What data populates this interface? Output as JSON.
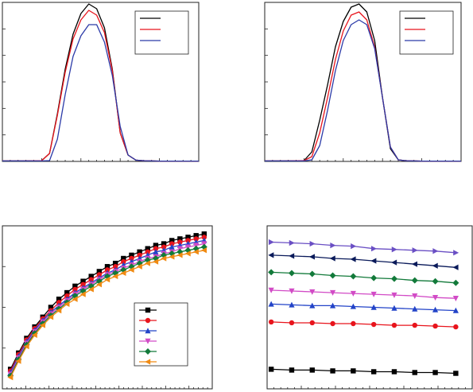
{
  "colors": {
    "black": "#000000",
    "red": "#e8141c",
    "blue": "#2b3aa8",
    "purple": "#6a4fc4",
    "navy": "#0a1a5a",
    "green": "#127a3a",
    "magenta": "#d24bc6",
    "blue2": "#2243c8",
    "orange": "#f08a12"
  },
  "chart_data": [
    {
      "id": "a",
      "type": "line",
      "title": "",
      "xlabel": "",
      "ylabel": "",
      "xlim": [
        0,
        100
      ],
      "ylim": [
        0,
        100
      ],
      "grid": false,
      "legend": {
        "placement": "top-right",
        "entries": [
          "",
          "",
          ""
        ]
      },
      "x": [
        0,
        10,
        20,
        24,
        28,
        32,
        36,
        40,
        44,
        48,
        52,
        56,
        60,
        64,
        68,
        72,
        76,
        80,
        90,
        100
      ],
      "series": [
        {
          "color_key": "black",
          "values": [
            0.3,
            0.3,
            0.5,
            5,
            30,
            58,
            80,
            93,
            99,
            96,
            84,
            58,
            18,
            4,
            0.8,
            0.4,
            0.3,
            0.2,
            0.2,
            0.2
          ]
        },
        {
          "color_key": "red",
          "values": [
            0.3,
            0.3,
            0.5,
            5,
            29,
            56,
            77,
            89,
            95,
            92,
            81,
            57,
            18,
            4,
            0.8,
            0.4,
            0.3,
            0.2,
            0.2,
            0.2
          ]
        },
        {
          "color_key": "blue",
          "values": [
            0.3,
            0.3,
            0.3,
            0.5,
            14,
            42,
            66,
            79,
            86,
            86,
            75,
            54,
            22,
            4,
            0.8,
            0.4,
            0.3,
            0.2,
            0.2,
            0.2
          ]
        }
      ]
    },
    {
      "id": "b",
      "type": "line",
      "title": "",
      "xlabel": "",
      "ylabel": "",
      "xlim": [
        0,
        100
      ],
      "ylim": [
        0,
        100
      ],
      "grid": false,
      "legend": {
        "placement": "top-right",
        "entries": [
          "",
          "",
          ""
        ]
      },
      "x": [
        0,
        10,
        20,
        24,
        28,
        32,
        36,
        40,
        44,
        48,
        52,
        56,
        60,
        64,
        68,
        72,
        76,
        80,
        90,
        100
      ],
      "series": [
        {
          "color_key": "black",
          "values": [
            0.3,
            0.3,
            0.5,
            6,
            26,
            48,
            72,
            88,
            97,
            99,
            94,
            76,
            40,
            8,
            1,
            0.4,
            0.3,
            0.2,
            0.2,
            0.2
          ]
        },
        {
          "color_key": "red",
          "values": [
            0.3,
            0.3,
            0.5,
            3,
            18,
            40,
            64,
            82,
            92,
            94,
            89,
            72,
            40,
            9,
            1,
            0.4,
            0.3,
            0.2,
            0.2,
            0.2
          ]
        },
        {
          "color_key": "blue",
          "values": [
            0.3,
            0.3,
            0.3,
            1,
            10,
            32,
            57,
            76,
            86,
            89,
            86,
            71,
            40,
            9,
            1,
            0.4,
            0.3,
            0.2,
            0.2,
            0.2
          ]
        }
      ]
    },
    {
      "id": "c",
      "type": "line",
      "title": "",
      "xlabel": "",
      "ylabel": "",
      "xlim": [
        0,
        26
      ],
      "ylim": [
        0,
        100
      ],
      "grid": false,
      "legend": {
        "placement": "bottom-right",
        "entries": [
          "",
          "",
          "",
          "",
          "",
          ""
        ]
      },
      "x": [
        1,
        2,
        3,
        4,
        5,
        6,
        7,
        8,
        9,
        10,
        11,
        12,
        13,
        14,
        15,
        16,
        17,
        18,
        19,
        20,
        21,
        22,
        23,
        24,
        25
      ],
      "series": [
        {
          "color_key": "black",
          "marker": "square",
          "values": [
            12,
            22,
            31,
            38,
            44,
            50,
            55,
            59,
            63,
            66,
            69,
            72,
            75,
            77,
            80,
            82,
            84,
            86,
            88,
            89,
            91,
            92,
            93,
            94,
            95
          ]
        },
        {
          "color_key": "red",
          "marker": "circle",
          "values": [
            11,
            21,
            30,
            37,
            43,
            48,
            53,
            57,
            61,
            64,
            67,
            70,
            73,
            75,
            78,
            80,
            82,
            84,
            86,
            87,
            89,
            90,
            91,
            92,
            93
          ]
        },
        {
          "color_key": "blue2",
          "marker": "triangle-up",
          "values": [
            10,
            20,
            29,
            36,
            42,
            47,
            51,
            55,
            59,
            62,
            65,
            68,
            71,
            73,
            76,
            78,
            80,
            82,
            84,
            85,
            87,
            88,
            89,
            90,
            91
          ]
        },
        {
          "color_key": "magenta",
          "marker": "triangle-down",
          "values": [
            9,
            19,
            28,
            35,
            41,
            46,
            50,
            54,
            58,
            61,
            64,
            67,
            70,
            72,
            74,
            76,
            78,
            80,
            81,
            83,
            84,
            86,
            87,
            88,
            89
          ]
        },
        {
          "color_key": "green",
          "marker": "diamond",
          "values": [
            8,
            18,
            27,
            34,
            40,
            45,
            49,
            53,
            57,
            60,
            63,
            66,
            69,
            71,
            73,
            75,
            77,
            79,
            80,
            82,
            83,
            84,
            85,
            86,
            87
          ]
        },
        {
          "color_key": "orange",
          "marker": "triangle-left",
          "values": [
            7,
            17,
            26,
            33,
            39,
            44,
            48,
            52,
            55,
            58,
            61,
            64,
            67,
            69,
            71,
            73,
            75,
            77,
            78,
            80,
            81,
            82,
            83,
            84,
            85
          ]
        }
      ]
    },
    {
      "id": "d",
      "type": "line",
      "title": "",
      "xlabel": "",
      "ylabel": "",
      "xlim": [
        0,
        10
      ],
      "ylim": [
        0,
        100
      ],
      "grid": false,
      "x": [
        0.2,
        1.2,
        2.2,
        3.2,
        4.2,
        5.2,
        6.2,
        7.2,
        8.2,
        9.2
      ],
      "series": [
        {
          "color_key": "purple",
          "marker": "triangle-right",
          "values": [
            90,
            89.5,
            89,
            88,
            87.5,
            86,
            85.5,
            85,
            84.5,
            83.5
          ]
        },
        {
          "color_key": "navy",
          "marker": "triangle-left",
          "values": [
            82,
            81.5,
            81,
            80,
            79.5,
            78.5,
            77.5,
            76.5,
            75.5,
            74.5
          ]
        },
        {
          "color_key": "green",
          "marker": "diamond",
          "values": [
            71.5,
            71,
            70.5,
            69.5,
            69,
            68,
            67.5,
            66.5,
            66,
            65
          ]
        },
        {
          "color_key": "magenta",
          "marker": "triangle-down",
          "values": [
            60.5,
            60,
            59.5,
            59,
            58.5,
            58,
            57.5,
            57,
            56,
            55.5
          ]
        },
        {
          "color_key": "blue2",
          "marker": "triangle-up",
          "values": [
            52,
            51.5,
            51,
            51,
            50.5,
            50,
            49.5,
            49,
            48.5,
            48
          ]
        },
        {
          "color_key": "red",
          "marker": "circle",
          "values": [
            41,
            40.5,
            40.5,
            40,
            40,
            39.5,
            39,
            39,
            38.5,
            38
          ]
        },
        {
          "color_key": "black",
          "marker": "square",
          "values": [
            12,
            11.5,
            11.5,
            11,
            11,
            10.5,
            10.5,
            10,
            10,
            9.5
          ]
        }
      ]
    }
  ]
}
